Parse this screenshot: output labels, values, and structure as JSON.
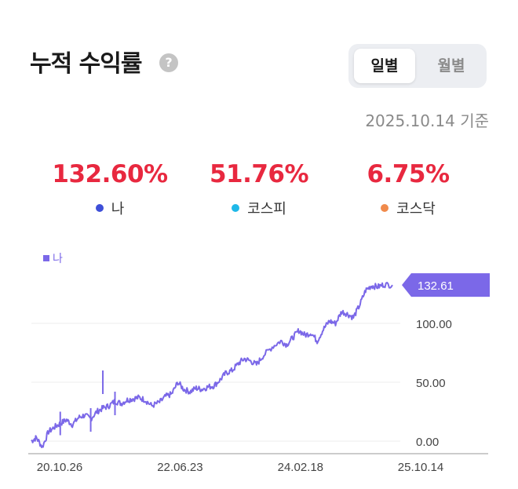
{
  "header": {
    "title": "누적 수익률",
    "help_icon": "?",
    "toggle": {
      "daily": "일별",
      "monthly": "월별",
      "selected": "daily"
    },
    "as_of": "2025.10.14 기준"
  },
  "stats": [
    {
      "value": "132.60%",
      "label": "나",
      "dot_color": "#3e4fd8"
    },
    {
      "value": "51.76%",
      "label": "코스피",
      "dot_color": "#1fb8e8"
    },
    {
      "value": "6.75%",
      "label": "코스닥",
      "dot_color": "#f08a4b"
    }
  ],
  "colors": {
    "positive": "#e8283f",
    "series": "#7b68e8"
  },
  "chart_data": {
    "type": "line",
    "legend": [
      "나"
    ],
    "last_value_label": "132.61",
    "last_value": 132.61,
    "ylim": [
      -10,
      135
    ],
    "yticks": [
      0,
      50,
      100
    ],
    "ytick_labels": [
      "0.00",
      "50.00",
      "100.00"
    ],
    "xtick_labels": [
      "20.10.26",
      "22.06.23",
      "24.02.18",
      "25.10.14"
    ],
    "xtick_positions": [
      "2020-10-26",
      "2022-06-23",
      "2024-02-18",
      "2025-10-14"
    ],
    "series": [
      {
        "name": "나",
        "x": [
          "2020-10-26",
          "2020-11-20",
          "2020-12-20",
          "2021-01-20",
          "2021-02-20",
          "2021-03-20",
          "2021-04-20",
          "2021-05-20",
          "2021-06-20",
          "2021-07-20",
          "2021-08-20",
          "2021-09-20",
          "2021-10-20",
          "2021-11-20",
          "2021-12-20",
          "2022-01-20",
          "2022-02-20",
          "2022-03-20",
          "2022-04-20",
          "2022-05-20",
          "2022-06-23",
          "2022-08-01",
          "2022-09-01",
          "2022-10-01",
          "2022-11-01",
          "2022-12-01",
          "2023-01-01",
          "2023-02-01",
          "2023-03-01",
          "2023-04-01",
          "2023-05-01",
          "2023-06-01",
          "2023-07-01",
          "2023-08-01",
          "2023-09-01",
          "2023-10-01",
          "2023-11-01",
          "2023-12-01",
          "2024-01-01",
          "2024-02-18",
          "2024-04-01",
          "2024-05-01",
          "2024-06-01",
          "2024-07-01",
          "2024-08-01",
          "2024-09-01",
          "2024-10-01",
          "2024-11-01",
          "2024-12-01",
          "2025-01-01",
          "2025-02-01",
          "2025-03-01",
          "2025-04-01",
          "2025-05-01",
          "2025-06-01",
          "2025-07-01",
          "2025-08-01",
          "2025-09-01",
          "2025-10-14"
        ],
        "values": [
          0,
          3,
          -5,
          8,
          12,
          15,
          18,
          14,
          20,
          22,
          19,
          25,
          28,
          30,
          34,
          32,
          35,
          36,
          37,
          35,
          30,
          33,
          38,
          40,
          50,
          44,
          42,
          45,
          44,
          46,
          47,
          52,
          58,
          60,
          66,
          70,
          68,
          65,
          72,
          80,
          85,
          82,
          88,
          94,
          90,
          92,
          85,
          95,
          102,
          100,
          110,
          108,
          105,
          115,
          128,
          132,
          131,
          133,
          132.61
        ]
      }
    ]
  }
}
